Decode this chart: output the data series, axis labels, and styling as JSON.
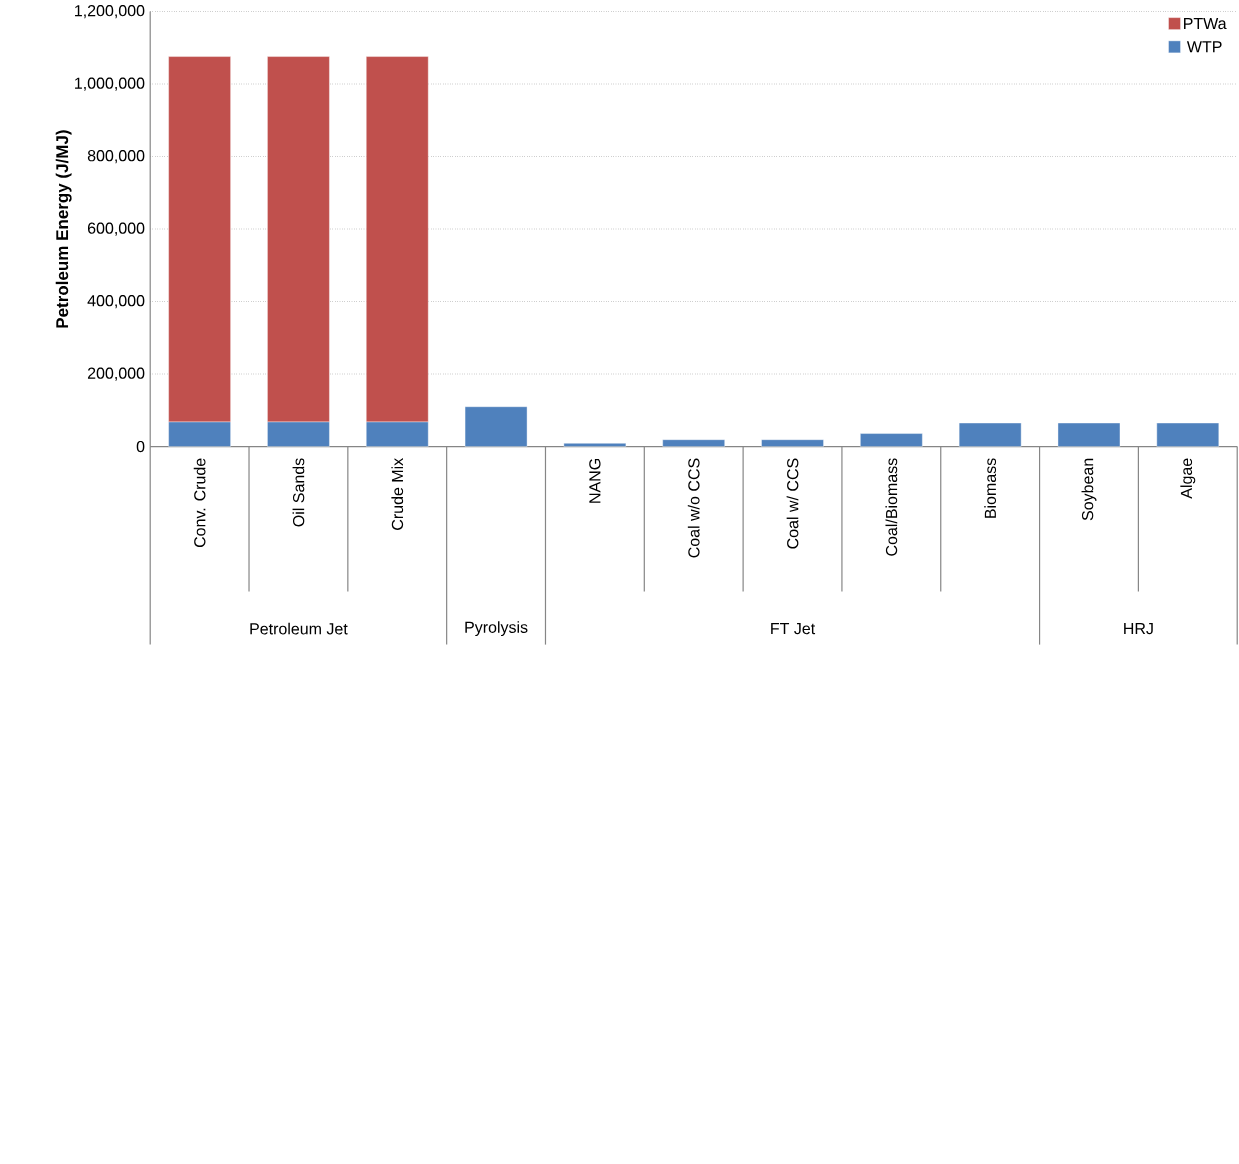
{
  "chart_data": {
    "type": "bar",
    "stacked": true,
    "ylabel": "Petroleum Energy (J/MJ)",
    "categories": [
      "Conv. Crude",
      "Oil Sands",
      "Crude Mix",
      null,
      "NANG",
      "Coal w/o CCS",
      "Coal w/ CCS",
      "Coal/Biomass",
      "Biomass",
      "Soybean",
      "Algae"
    ],
    "series": [
      {
        "name": "WTP",
        "color": "#4f81bd",
        "values": [
          68000,
          68000,
          68000,
          110000,
          9000,
          19000,
          19000,
          36000,
          65000,
          65000,
          65000
        ]
      },
      {
        "name": "PTWa",
        "color": "#c0504d",
        "values": [
          1008000,
          1008000,
          1008000,
          null,
          null,
          null,
          null,
          null,
          null,
          null,
          null
        ]
      }
    ],
    "ylim": [
      0,
      1200000
    ],
    "yticks": [
      {
        "value": 0,
        "label": "0"
      },
      {
        "value": 200000,
        "label": "200,000"
      },
      {
        "value": 400000,
        "label": "400,000"
      },
      {
        "value": 600000,
        "label": "600,000"
      },
      {
        "value": 800000,
        "label": "800,000"
      },
      {
        "value": 1000000,
        "label": "1,000,000"
      },
      {
        "value": 1200000,
        "label": "1,200,000"
      }
    ],
    "grid": "y",
    "legend": "top right",
    "annotations": [
      "Petroleum Jet",
      "Pyrolysis",
      "FT Jet",
      "HRJ"
    ]
  }
}
